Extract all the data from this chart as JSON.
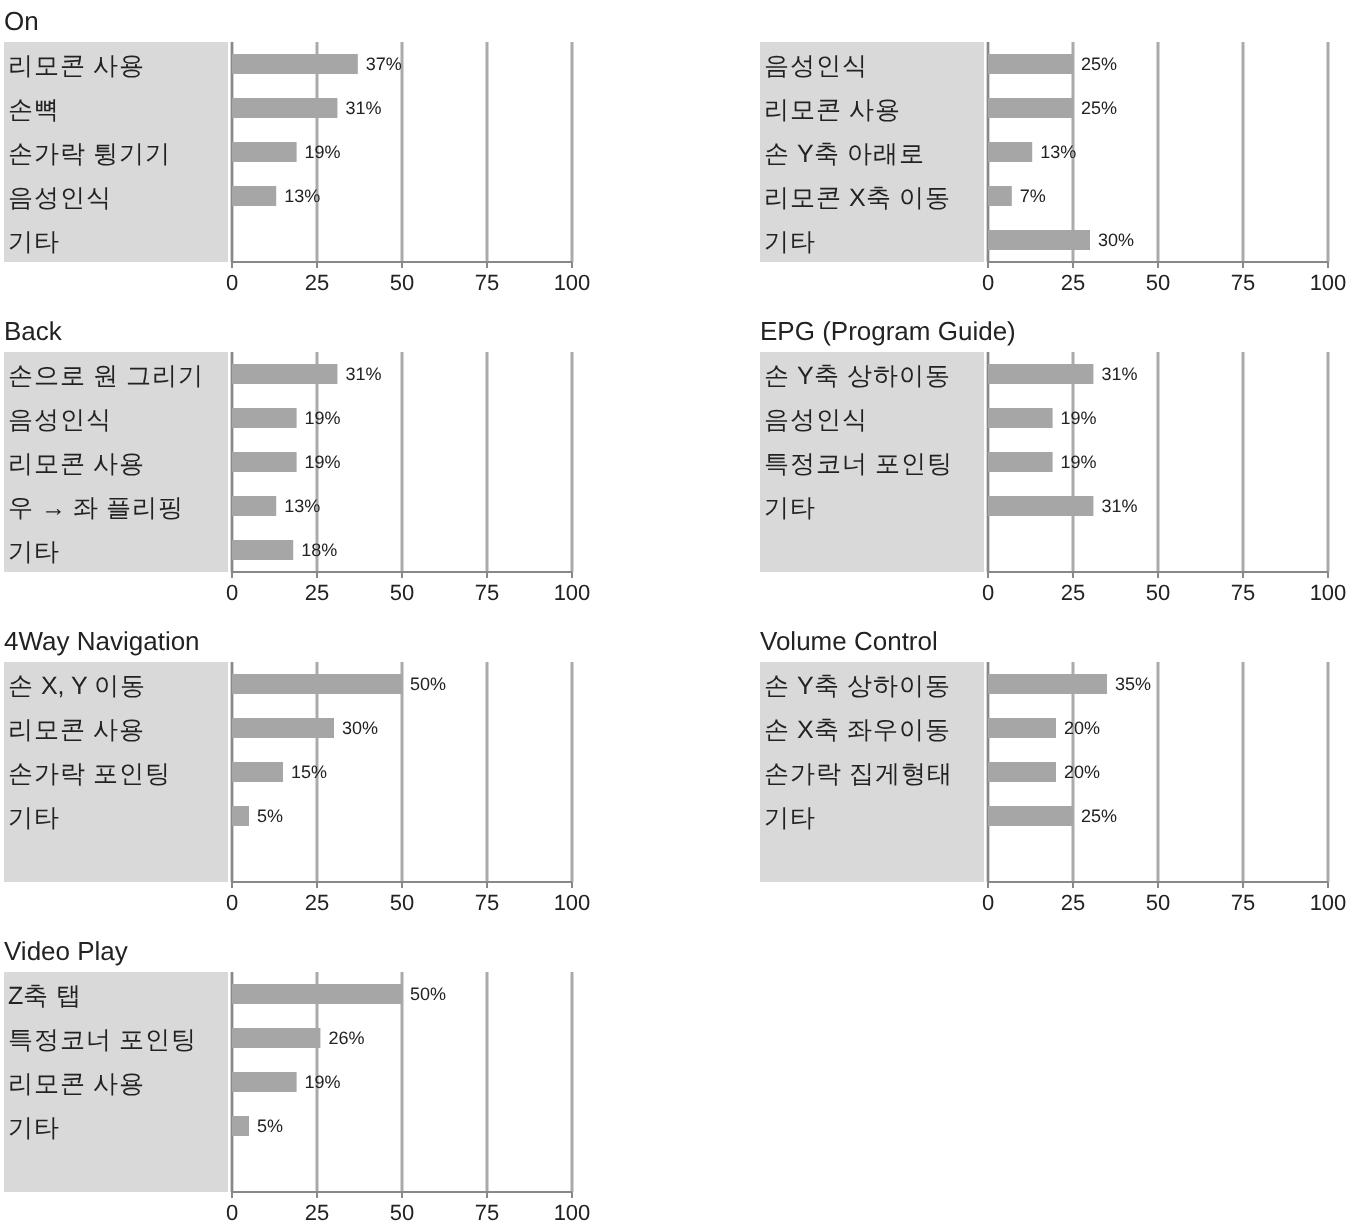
{
  "chart_data": [
    {
      "type": "bar",
      "orientation": "horizontal",
      "title": "On",
      "categories": [
        "리모콘 사용",
        "손뼉",
        "손가락 튕기기",
        "음성인식",
        "기타"
      ],
      "values": [
        37,
        31,
        19,
        13,
        null
      ],
      "value_labels": [
        "37%",
        "31%",
        "19%",
        "13%",
        null
      ],
      "color": "#a6a6a6",
      "xlim": [
        0,
        100
      ],
      "xticks": [
        0,
        25,
        50,
        75,
        100
      ],
      "grid": "x"
    },
    {
      "type": "bar",
      "orientation": "horizontal",
      "categories": [
        "음성인식",
        "리모콘 사용",
        "손 Y축 아래로",
        "리모콘 X축 이동",
        "기타"
      ],
      "values": [
        25,
        25,
        13,
        7,
        30
      ],
      "value_labels": [
        "25%",
        "25%",
        "13%",
        "7%",
        "30%"
      ],
      "color": "#a6a6a6",
      "xlim": [
        0,
        100
      ],
      "xticks": [
        0,
        25,
        50,
        75,
        100
      ],
      "grid": "x"
    },
    {
      "type": "bar",
      "orientation": "horizontal",
      "title": "Back",
      "categories": [
        "손으로 원 그리기",
        "음성인식",
        "리모콘 사용",
        "우 → 좌 플리핑",
        "기타"
      ],
      "values": [
        31,
        19,
        19,
        13,
        18
      ],
      "value_labels": [
        "31%",
        "19%",
        "19%",
        "13%",
        "18%"
      ],
      "color": "#a6a6a6",
      "xlim": [
        0,
        100
      ],
      "xticks": [
        0,
        25,
        50,
        75,
        100
      ],
      "grid": "x"
    },
    {
      "type": "bar",
      "orientation": "horizontal",
      "title": "EPG (Program Guide)",
      "categories": [
        "손 Y축 상하이동",
        "음성인식",
        "특정코너 포인팅",
        "기타"
      ],
      "values": [
        31,
        19,
        19,
        31
      ],
      "value_labels": [
        "31%",
        "19%",
        "19%",
        "31%"
      ],
      "color": "#a6a6a6",
      "xlim": [
        0,
        100
      ],
      "xticks": [
        0,
        25,
        50,
        75,
        100
      ],
      "grid": "x"
    },
    {
      "type": "bar",
      "orientation": "horizontal",
      "title": "4Way Navigation",
      "categories": [
        "손 X, Y 이동",
        "리모콘 사용",
        "손가락 포인팅",
        "기타"
      ],
      "values": [
        50,
        30,
        15,
        5
      ],
      "value_labels": [
        "50%",
        "30%",
        "15%",
        "5%"
      ],
      "color": "#a6a6a6",
      "xlim": [
        0,
        100
      ],
      "xticks": [
        0,
        25,
        50,
        75,
        100
      ],
      "grid": "x"
    },
    {
      "type": "bar",
      "orientation": "horizontal",
      "title": "Volume Control",
      "categories": [
        "손 Y축 상하이동",
        "손 X축 좌우이동",
        "손가락 집게형태",
        "기타"
      ],
      "values": [
        35,
        20,
        20,
        25
      ],
      "value_labels": [
        "35%",
        "20%",
        "20%",
        "25%"
      ],
      "color": "#a6a6a6",
      "xlim": [
        0,
        100
      ],
      "xticks": [
        0,
        25,
        50,
        75,
        100
      ],
      "grid": "x"
    },
    {
      "type": "bar",
      "orientation": "horizontal",
      "title": "Video Play",
      "categories": [
        "Z축 탭",
        "특정코너 포인팅",
        "리모콘 사용",
        "기타"
      ],
      "values": [
        50,
        26,
        19,
        5
      ],
      "value_labels": [
        "50%",
        "26%",
        "19%",
        "5%"
      ],
      "color": "#a6a6a6",
      "xlim": [
        0,
        100
      ],
      "xticks": [
        0,
        25,
        50,
        75,
        100
      ],
      "grid": "x"
    }
  ]
}
